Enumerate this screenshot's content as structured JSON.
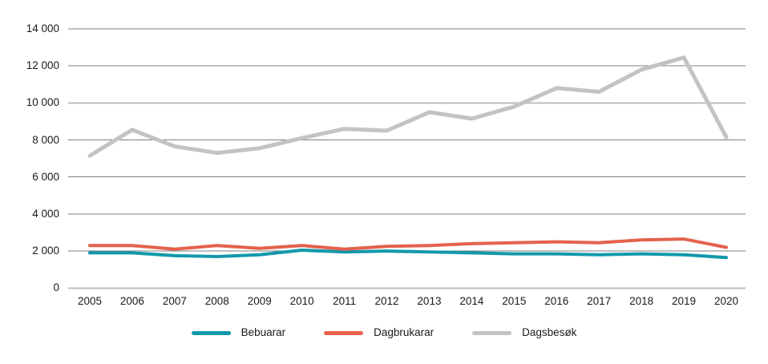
{
  "chart_data": {
    "type": "line",
    "title": "",
    "xlabel": "",
    "ylabel": "",
    "x": [
      "2005",
      "2006",
      "2007",
      "2008",
      "2009",
      "2010",
      "2011",
      "2012",
      "2013",
      "2014",
      "2015",
      "2016",
      "2017",
      "2018",
      "2019",
      "2020"
    ],
    "series": [
      {
        "name": "Bebuarar",
        "color": "#1299ab",
        "values": [
          1900,
          1900,
          1750,
          1700,
          1800,
          2050,
          1950,
          2000,
          1950,
          1900,
          1850,
          1850,
          1800,
          1850,
          1800,
          1650
        ]
      },
      {
        "name": "Dagbrukarar",
        "color": "#e5614c",
        "values": [
          2300,
          2300,
          2100,
          2300,
          2150,
          2300,
          2100,
          2250,
          2300,
          2400,
          2450,
          2500,
          2450,
          2600,
          2650,
          2200
        ]
      },
      {
        "name": "Dagsbesøk",
        "color": "#c3c3c3",
        "values": [
          7150,
          8550,
          7650,
          7300,
          7550,
          8100,
          8600,
          8500,
          9500,
          9150,
          9800,
          10800,
          10600,
          11800,
          12450,
          8150
        ]
      }
    ],
    "ylim": [
      0,
      14000
    ],
    "ytick_step": 2000,
    "ytick_labels_top_down": [
      "14 000",
      "12 000",
      "10 000",
      "8 000",
      "6 000",
      "4 000",
      "2 000",
      "0"
    ],
    "emphasized_gridline_values": [
      10000,
      0
    ],
    "grid": "horizontal",
    "legend_position": "bottom-center",
    "colors": {
      "grid_dark": "#7f7f7f",
      "grid_light": "#bdbdbd",
      "text": "#1a1a1a",
      "background": "#ffffff"
    }
  }
}
